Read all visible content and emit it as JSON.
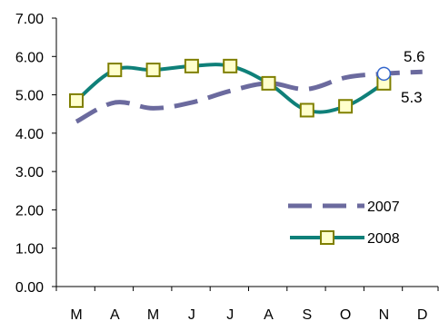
{
  "chart_data": {
    "type": "line",
    "title": "",
    "xlabel": "",
    "ylabel": "",
    "categories": [
      "M",
      "A",
      "M",
      "J",
      "J",
      "A",
      "S",
      "O",
      "N",
      "D"
    ],
    "ylim": [
      0,
      7
    ],
    "yticks": [
      "0.00",
      "1.00",
      "2.00",
      "3.00",
      "4.00",
      "5.00",
      "6.00",
      "7.00"
    ],
    "grid": false,
    "legend_position": "bottom-right",
    "series": [
      {
        "name": "2007",
        "style": "dashed",
        "color": "#6b6a9e",
        "values": [
          4.3,
          4.8,
          4.65,
          4.8,
          5.1,
          5.3,
          5.15,
          5.45,
          5.55,
          5.6
        ]
      },
      {
        "name": "2008",
        "style": "solid-square-markers",
        "color": "#0f8079",
        "marker_fill": "#ffffcc",
        "marker_stroke": "#7f7f00",
        "values": [
          4.85,
          5.65,
          5.65,
          5.75,
          5.75,
          5.3,
          4.6,
          4.7,
          5.3,
          null
        ]
      }
    ],
    "annotations": [
      {
        "text": "5.6",
        "series": "2007",
        "category_index": 9
      },
      {
        "text": "5.3",
        "series": "2008",
        "category_index": 8
      }
    ]
  }
}
